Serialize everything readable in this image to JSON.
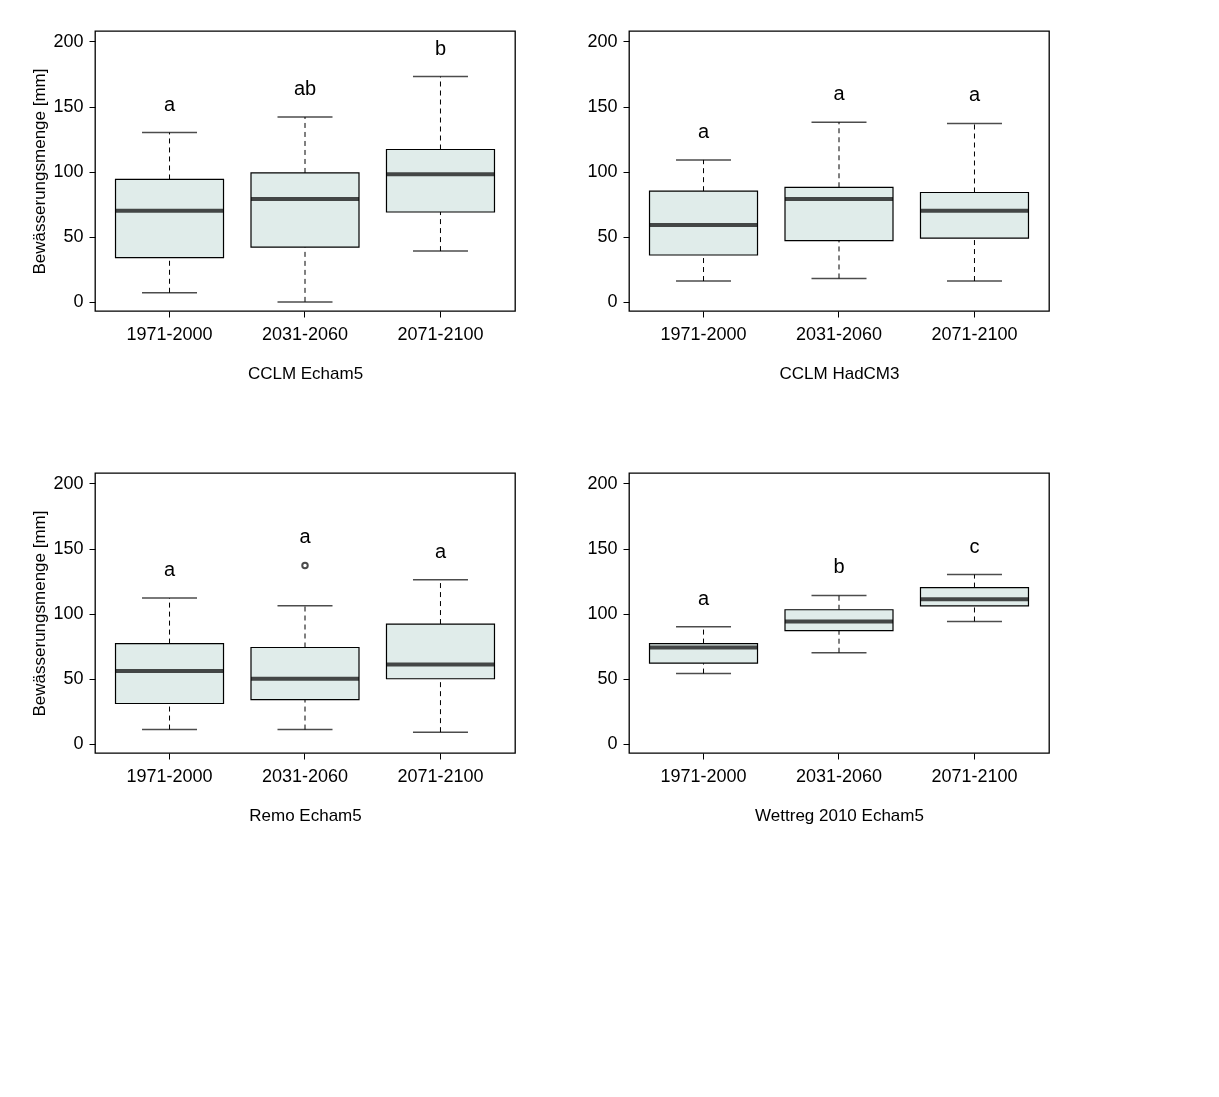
{
  "chart_data": [
    {
      "type": "box",
      "xlabel": "CCLM Echam5",
      "ylabel": "Bewässerungsmenge [mm]",
      "categories": [
        "1971-2000",
        "2031-2060",
        "2071-2100"
      ],
      "ylim": [
        -7,
        208
      ],
      "yticks": [
        0,
        50,
        100,
        150,
        200
      ],
      "grid": false,
      "series": [
        {
          "color": "#e0ecea",
          "boxes": [
            {
              "low": 7,
              "q1": 34,
              "median": 70,
              "q3": 94,
              "high": 130
            },
            {
              "low": 0,
              "q1": 42,
              "median": 79,
              "q3": 99,
              "high": 142
            },
            {
              "low": 39,
              "q1": 69,
              "median": 98,
              "q3": 117,
              "high": 173
            }
          ]
        }
      ],
      "annotations": [
        "a",
        "ab",
        "b"
      ]
    },
    {
      "type": "box",
      "xlabel": "CCLM HadCM3",
      "categories": [
        "1971-2000",
        "2031-2060",
        "2071-2100"
      ],
      "ylim": [
        -7,
        208
      ],
      "yticks": [
        0,
        50,
        100,
        150,
        200
      ],
      "grid": false,
      "series": [
        {
          "color": "#e0ecea",
          "boxes": [
            {
              "low": 16,
              "q1": 36,
              "median": 59,
              "q3": 85,
              "high": 109
            },
            {
              "low": 18,
              "q1": 47,
              "median": 79,
              "q3": 88,
              "high": 138
            },
            {
              "low": 16,
              "q1": 49,
              "median": 70,
              "q3": 84,
              "high": 137
            }
          ]
        }
      ],
      "annotations": [
        "a",
        "a",
        "a"
      ]
    },
    {
      "type": "box",
      "xlabel": "Remo Echam5",
      "ylabel": "Bewässerungsmenge [mm]",
      "categories": [
        "1971-2000",
        "2031-2060",
        "2071-2100"
      ],
      "ylim": [
        -7,
        208
      ],
      "yticks": [
        0,
        50,
        100,
        150,
        200
      ],
      "grid": false,
      "series": [
        {
          "color": "#e0ecea",
          "boxes": [
            {
              "low": 11,
              "q1": 31,
              "median": 56,
              "q3": 77,
              "high": 112
            },
            {
              "low": 11,
              "q1": 34,
              "median": 50,
              "q3": 74,
              "high": 106,
              "outliers": [
                137
              ]
            },
            {
              "low": 9,
              "q1": 50,
              "median": 61,
              "q3": 92,
              "high": 126
            }
          ]
        }
      ],
      "annotations": [
        "a",
        "a",
        "a"
      ]
    },
    {
      "type": "box",
      "xlabel": "Wettreg 2010 Echam5",
      "categories": [
        "1971-2000",
        "2031-2060",
        "2071-2100"
      ],
      "ylim": [
        -7,
        208
      ],
      "yticks": [
        0,
        50,
        100,
        150,
        200
      ],
      "grid": false,
      "series": [
        {
          "color": "#e0ecea",
          "boxes": [
            {
              "low": 54,
              "q1": 62,
              "median": 74,
              "q3": 77,
              "high": 90
            },
            {
              "low": 70,
              "q1": 87,
              "median": 94,
              "q3": 103,
              "high": 114
            },
            {
              "low": 94,
              "q1": 106,
              "median": 111,
              "q3": 120,
              "high": 130
            }
          ]
        }
      ],
      "annotations": [
        "a",
        "b",
        "c"
      ]
    }
  ]
}
